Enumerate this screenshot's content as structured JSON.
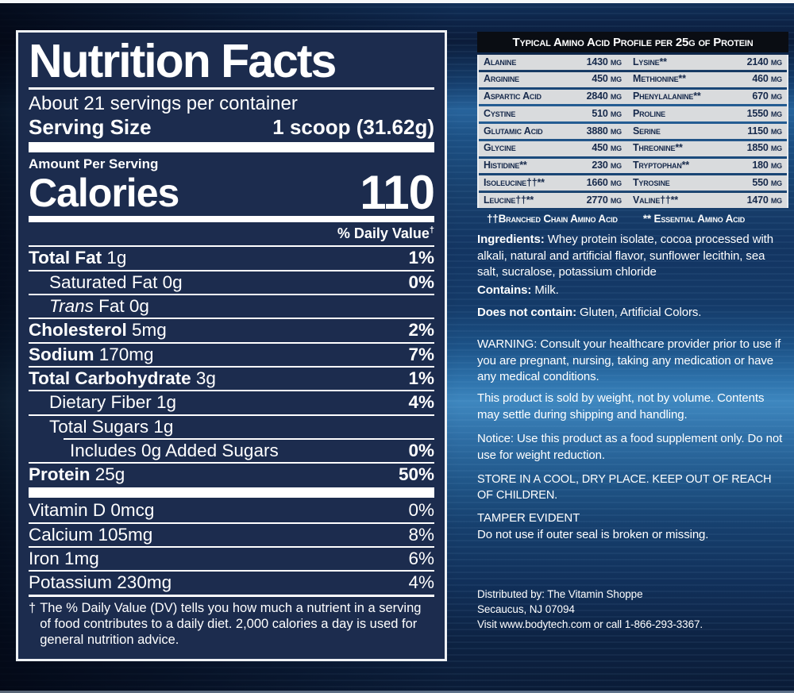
{
  "colors": {
    "panel_navy": "#1c2c4e",
    "panel_border_white": "#eef1f4",
    "text_white": "#ffffff",
    "amino_header_bg": "#0a0d13",
    "amino_row_bg": "#d9dbdd",
    "amino_text_navy": "#16294b",
    "background_dark_blue": "#0a1b36",
    "background_light_band": "#3e87bf"
  },
  "nutrition_facts": {
    "title": "Nutrition Facts",
    "servings_per_container": "About 21 servings per container",
    "serving_size_label": "Serving Size",
    "serving_size_value": "1 scoop (31.62g)",
    "amount_per_serving": "Amount Per Serving",
    "calories_label": "Calories",
    "calories_value": "110",
    "daily_value_header": "% Daily Value",
    "daily_value_dagger": "†",
    "nutrient_rows": [
      {
        "parts": [
          {
            "t": "Total Fat",
            "b": true
          },
          {
            "t": " 1g"
          }
        ],
        "dv": "1%",
        "dv_bold": true,
        "indent": 0
      },
      {
        "parts": [
          {
            "t": "Saturated Fat 0g"
          }
        ],
        "dv": "0%",
        "dv_bold": true,
        "indent": 1
      },
      {
        "parts": [
          {
            "t": "Trans",
            "i": true
          },
          {
            "t": " Fat 0g"
          }
        ],
        "dv": "",
        "indent": 1
      },
      {
        "parts": [
          {
            "t": "Cholesterol",
            "b": true
          },
          {
            "t": " 5mg"
          }
        ],
        "dv": "2%",
        "dv_bold": true,
        "indent": 0
      },
      {
        "parts": [
          {
            "t": "Sodium",
            "b": true
          },
          {
            "t": " 170mg"
          }
        ],
        "dv": "7%",
        "dv_bold": true,
        "indent": 0
      },
      {
        "parts": [
          {
            "t": "Total Carbohydrate",
            "b": true
          },
          {
            "t": " 3g"
          }
        ],
        "dv": "1%",
        "dv_bold": true,
        "indent": 0
      },
      {
        "parts": [
          {
            "t": "Dietary Fiber 1g"
          }
        ],
        "dv": "4%",
        "dv_bold": true,
        "indent": 1
      },
      {
        "parts": [
          {
            "t": "Total Sugars 1g"
          }
        ],
        "dv": "",
        "indent": 1
      },
      {
        "parts": [
          {
            "t": "Includes 0g Added Sugars"
          }
        ],
        "dv": "0%",
        "dv_bold": true,
        "indent": 2,
        "indent_sep": true
      },
      {
        "parts": [
          {
            "t": "Protein",
            "b": true
          },
          {
            "t": " 25g"
          }
        ],
        "dv": "50%",
        "dv_bold": true,
        "indent": 0
      }
    ],
    "vitamin_rows": [
      {
        "parts": [
          {
            "t": "Vitamin D 0mcg"
          }
        ],
        "dv": "0%"
      },
      {
        "parts": [
          {
            "t": "Calcium 105mg"
          }
        ],
        "dv": "8%"
      },
      {
        "parts": [
          {
            "t": "Iron 1mg"
          }
        ],
        "dv": "6%"
      },
      {
        "parts": [
          {
            "t": "Potassium 230mg"
          }
        ],
        "dv": "4%"
      }
    ],
    "footnote_dagger": "†",
    "footnote": "The % Daily Value (DV) tells you how much a nutrient in a serving of food contributes to a daily diet. 2,000 calories a day is used for general nutrition advice."
  },
  "amino_table": {
    "title": "Typical Amino Acid Profile per 25g of Protein",
    "rows": [
      {
        "l_name": "Alanine",
        "l_val": "1430 mg",
        "r_name": "Lysine**",
        "r_val": "2140 mg"
      },
      {
        "l_name": "Arginine",
        "l_val": "450 mg",
        "r_name": "Methionine**",
        "r_val": "460 mg"
      },
      {
        "l_name": "Aspartic Acid",
        "l_val": "2840 mg",
        "r_name": "Phenylalanine**",
        "r_val": "670 mg"
      },
      {
        "l_name": "Cystine",
        "l_val": "510 mg",
        "r_name": "Proline",
        "r_val": "1550 mg"
      },
      {
        "l_name": "Glutamic Acid",
        "l_val": "3880 mg",
        "r_name": "Serine",
        "r_val": "1150 mg"
      },
      {
        "l_name": "Glycine",
        "l_val": "450 mg",
        "r_name": "Threonine**",
        "r_val": "1850 mg"
      },
      {
        "l_name": "Histidine**",
        "l_val": "230 mg",
        "r_name": "Tryptophan**",
        "r_val": "180 mg"
      },
      {
        "l_name": "Isoleucine††**",
        "l_val": "1660 mg",
        "r_name": "Tyrosine",
        "r_val": "550 mg"
      },
      {
        "l_name": "Leucine††**",
        "l_val": "2770 mg",
        "r_name": "Valine††**",
        "r_val": "1470 mg"
      }
    ],
    "legend_bcaa": "††Branched Chain Amino Acid",
    "legend_eaa": "** Essential Amino Acid"
  },
  "info": {
    "ingredients_label": "Ingredients:",
    "ingredients_text": "  Whey protein isolate, cocoa processed with alkali, natural and artificial flavor, sunflower lecithin, sea salt, sucralose, potassium chloride",
    "contains_label": "Contains:",
    "contains_text": " Milk.",
    "does_not_contain_label": "Does not contain:",
    "does_not_contain_text": " Gluten, Artificial Colors.",
    "warning": "WARNING: Consult your healthcare provider prior to use if you are pregnant, nursing, taking any medication or have any medical conditions.",
    "sold_by_weight": "This product is sold by weight, not by volume. Contents may settle during shipping and handling.",
    "notice": "Notice: Use this product as a food supplement only. Do not use for weight reduction.",
    "storage": "STORE IN A COOL, DRY PLACE. KEEP OUT OF REACH OF CHILDREN.",
    "tamper_title": "TAMPER EVIDENT",
    "tamper_text": "Do not use if outer seal is broken or missing.",
    "distributed_lines": [
      "Distributed by: The Vitamin Shoppe",
      "Secaucus, NJ 07094",
      "Visit www.bodytech.com or call 1-866-293-3367."
    ]
  }
}
